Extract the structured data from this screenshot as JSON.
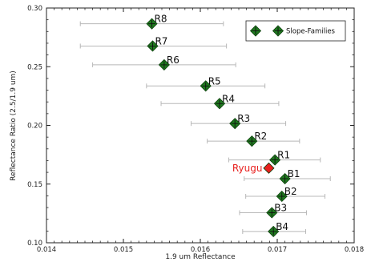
{
  "chart_data": {
    "type": "scatter",
    "xlabel": "1.9 um Reflectance",
    "ylabel": "Reflectance Ratio (2.5/1.9 um)",
    "xlim": [
      0.014,
      0.018
    ],
    "ylim": [
      0.1,
      0.3
    ],
    "x_ticks": [
      "0.014",
      "0.015",
      "0.016",
      "0.017",
      "0.018"
    ],
    "y_ticks": [
      "0.10",
      "0.15",
      "0.20",
      "0.25",
      "0.30"
    ],
    "x_tick_values": [
      0.014,
      0.015,
      0.016,
      0.017,
      0.018
    ],
    "y_tick_values": [
      0.1,
      0.15,
      0.2,
      0.25,
      0.3
    ],
    "legend": {
      "label": "Slope-Families",
      "placement": "top-right"
    },
    "series": [
      {
        "name": "Slope-Families",
        "color": "#1f7a1f",
        "marker": "diamond",
        "points": [
          {
            "label": "R8",
            "x": 0.01537,
            "y": 0.2866,
            "xerr_low": 0.01444,
            "xerr_high": 0.0163
          },
          {
            "label": "R7",
            "x": 0.01538,
            "y": 0.2676,
            "xerr_low": 0.01444,
            "xerr_high": 0.01634
          },
          {
            "label": "R6",
            "x": 0.01553,
            "y": 0.2516,
            "xerr_low": 0.0146,
            "xerr_high": 0.01646
          },
          {
            "label": "R5",
            "x": 0.01607,
            "y": 0.2336,
            "xerr_low": 0.0153,
            "xerr_high": 0.01684
          },
          {
            "label": "R4",
            "x": 0.01625,
            "y": 0.2186,
            "xerr_low": 0.01549,
            "xerr_high": 0.01702
          },
          {
            "label": "R3",
            "x": 0.01645,
            "y": 0.2016,
            "xerr_low": 0.01588,
            "xerr_high": 0.01711
          },
          {
            "label": "R2",
            "x": 0.01667,
            "y": 0.1866,
            "xerr_low": 0.01609,
            "xerr_high": 0.01729
          },
          {
            "label": "R1",
            "x": 0.01697,
            "y": 0.1706,
            "xerr_low": 0.01637,
            "xerr_high": 0.01756
          },
          {
            "label": "B1",
            "x": 0.0171,
            "y": 0.1546,
            "xerr_low": 0.01657,
            "xerr_high": 0.01769
          },
          {
            "label": "B2",
            "x": 0.01706,
            "y": 0.1396,
            "xerr_low": 0.01659,
            "xerr_high": 0.01762
          },
          {
            "label": "B3",
            "x": 0.01693,
            "y": 0.1256,
            "xerr_low": 0.01651,
            "xerr_high": 0.01738
          },
          {
            "label": "B4",
            "x": 0.01695,
            "y": 0.1096,
            "xerr_low": 0.01655,
            "xerr_high": 0.01737
          }
        ]
      },
      {
        "name": "Ryugu",
        "color": "#e8201e",
        "marker": "diamond",
        "points": [
          {
            "label": "Ryugu",
            "x": 0.01689,
            "y": 0.1636
          }
        ]
      }
    ]
  }
}
